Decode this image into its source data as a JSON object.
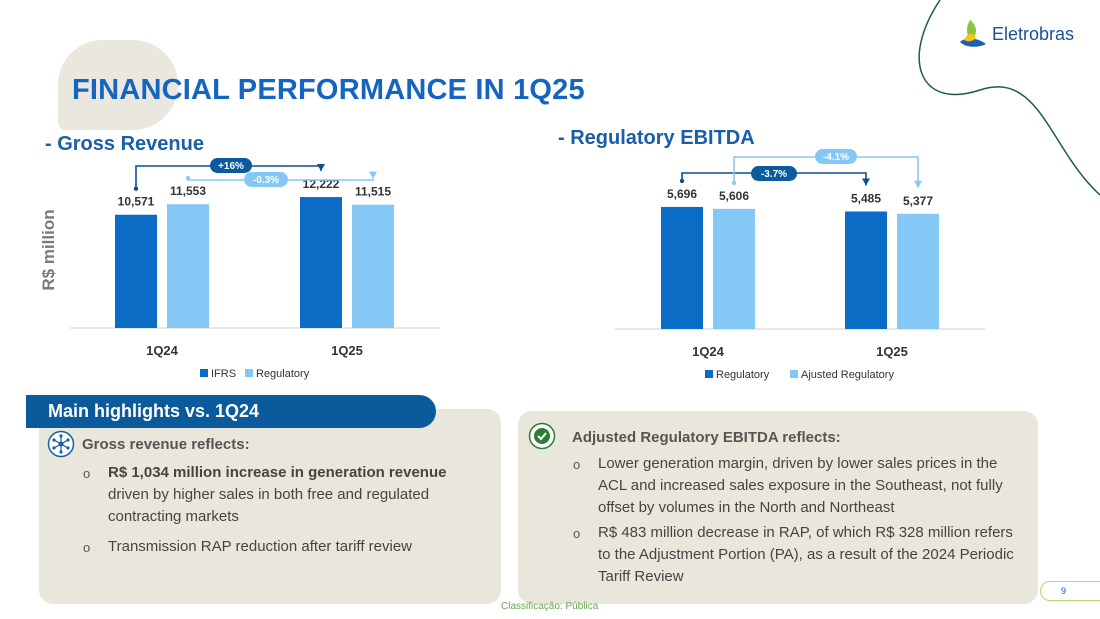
{
  "title": "FINANCIAL PERFORMANCE IN 1Q25",
  "logo": {
    "text": "Eletrobras",
    "icon": "eletrobras-leaf-icon"
  },
  "colors": {
    "dark_blue": "#0a6cc4",
    "light_blue": "#86c8f5",
    "title_blue": "#1565c0",
    "box_bg": "#e9e7dc"
  },
  "y_axis_label": "R$ million",
  "chart_data": [
    {
      "type": "bar",
      "title": "- Gross Revenue",
      "categories": [
        "1Q24",
        "1Q25"
      ],
      "series": [
        {
          "name": "IFRS",
          "values": [
            10571,
            12222
          ],
          "labels": [
            "10,571",
            "12,222"
          ]
        },
        {
          "name": "Regulatory",
          "values": [
            11553,
            11515
          ],
          "labels": [
            "11,553",
            "11,515"
          ]
        }
      ],
      "annotations": [
        {
          "label": "+16%",
          "from": "IFRS 1Q24",
          "to": "IFRS 1Q25",
          "style": "dark"
        },
        {
          "label": "-0.3%",
          "from": "Regulatory 1Q24",
          "to": "Regulatory 1Q25",
          "style": "light"
        }
      ],
      "legend": [
        "IFRS",
        "Regulatory"
      ],
      "ylim": [
        0,
        14000
      ]
    },
    {
      "type": "bar",
      "title": "- Regulatory EBITDA",
      "categories": [
        "1Q24",
        "1Q25"
      ],
      "series": [
        {
          "name": "Regulatory",
          "values": [
            5696,
            5485
          ],
          "labels": [
            "5,696",
            "5,485"
          ]
        },
        {
          "name": "Ajusted Regulatory",
          "values": [
            5606,
            5377
          ],
          "labels": [
            "5,606",
            "5,377"
          ]
        }
      ],
      "annotations": [
        {
          "label": "-3.7%",
          "from": "Regulatory 1Q24",
          "to": "Regulatory 1Q25",
          "style": "dark"
        },
        {
          "label": "-4.1%",
          "from": "Ajusted 1Q24",
          "to": "Ajusted 1Q25",
          "style": "light"
        }
      ],
      "legend": [
        "Regulatory",
        "Ajusted Regulatory"
      ],
      "ylim": [
        0,
        7000
      ]
    }
  ],
  "highlights": {
    "header": "Main highlights vs. 1Q24",
    "left": {
      "heading": "Gross revenue reflects:",
      "icon": "network-icon",
      "bullet1_bold": "R$ 1,034 million increase in generation revenue",
      "bullet1_rest": " driven by higher sales in both free and regulated contracting markets",
      "bullet2": "Transmission RAP reduction after tariff review"
    },
    "right": {
      "heading": "Adjusted Regulatory EBITDA reflects:",
      "icon": "check-circle-icon",
      "bullet1": "Lower generation margin, driven by lower sales prices in the ACL and increased sales exposure in the Southeast, not fully offset by volumes in the North and Northeast",
      "bullet2": "R$ 483 million decrease in RAP, of which R$ 328 million refers to the Adjustment Portion (PA), as a result of the 2024 Periodic Tariff Review"
    },
    "bullet_glyph": "o"
  },
  "footer": {
    "classification": "Classificação: Pública",
    "page_number": "9"
  }
}
